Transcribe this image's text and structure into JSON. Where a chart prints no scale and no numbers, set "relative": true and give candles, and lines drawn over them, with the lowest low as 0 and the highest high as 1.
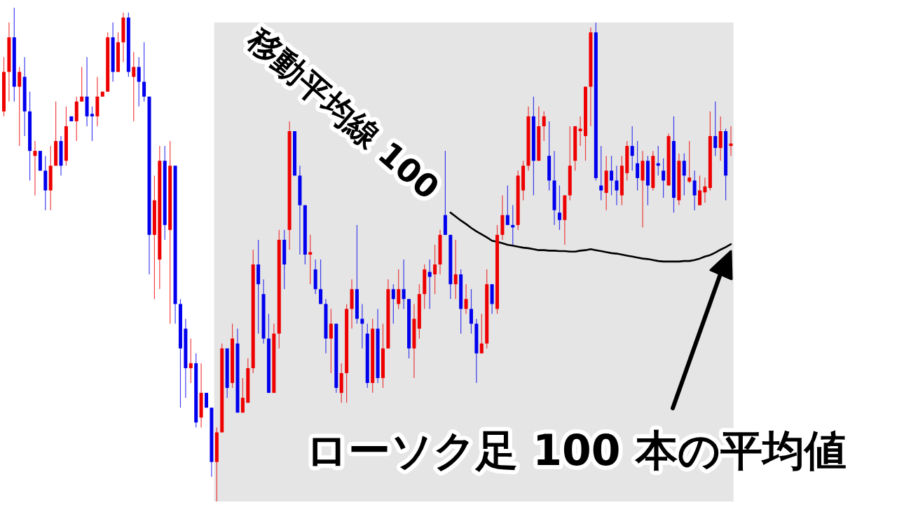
{
  "chart_data": {
    "type": "candlestick",
    "relative": true,
    "categories": [
      null,
      null,
      null,
      null,
      null,
      null,
      null,
      null,
      null,
      null,
      null,
      null,
      null,
      null,
      null,
      null,
      null,
      null,
      null,
      null,
      null,
      null,
      null,
      null,
      null,
      null,
      null,
      null,
      null,
      null,
      null,
      null,
      null,
      null,
      null,
      null,
      null,
      null,
      null,
      null,
      null,
      null,
      null,
      null,
      null,
      null,
      null,
      null,
      null,
      null,
      null,
      null,
      null,
      null,
      null,
      null,
      null,
      null,
      null,
      null,
      null,
      null,
      null,
      null,
      null,
      null,
      null,
      null,
      null,
      null,
      null,
      null,
      null,
      null,
      null,
      null,
      null,
      null,
      null,
      null,
      null,
      null,
      null,
      null,
      null,
      null,
      null,
      null,
      null,
      null,
      null,
      null,
      null,
      null,
      null,
      null,
      null,
      null,
      null,
      null,
      null,
      null,
      null,
      null,
      null,
      null,
      null,
      null,
      null,
      null,
      null,
      null,
      null,
      null,
      null,
      null,
      null,
      null,
      null,
      null,
      null,
      null,
      null,
      null,
      null,
      null,
      null,
      null,
      null,
      null,
      null,
      null,
      null,
      null,
      null,
      null,
      null,
      null,
      null,
      null,
      null
    ],
    "ohlc": [
      [
        0.79,
        0.9,
        0.78,
        0.87
      ],
      [
        0.87,
        0.97,
        0.81,
        0.94
      ],
      [
        0.94,
        1.0,
        0.81,
        0.84
      ],
      [
        0.84,
        0.88,
        0.72,
        0.87
      ],
      [
        0.86,
        0.9,
        0.74,
        0.79
      ],
      [
        0.79,
        0.83,
        0.65,
        0.71
      ],
      [
        0.7,
        0.73,
        0.62,
        0.71
      ],
      [
        0.71,
        0.71,
        0.67,
        0.67
      ],
      [
        0.67,
        0.7,
        0.59,
        0.63
      ],
      [
        0.63,
        0.72,
        0.59,
        0.68
      ],
      [
        0.68,
        0.81,
        0.68,
        0.73
      ],
      [
        0.73,
        0.74,
        0.66,
        0.68
      ],
      [
        0.69,
        0.8,
        0.68,
        0.76
      ],
      [
        0.78,
        0.78,
        0.77,
        0.77
      ],
      [
        0.77,
        0.82,
        0.73,
        0.81
      ],
      [
        0.81,
        0.88,
        0.81,
        0.82
      ],
      [
        0.82,
        0.9,
        0.76,
        0.78
      ],
      [
        0.785,
        0.8,
        0.73,
        0.78
      ],
      [
        0.78,
        0.86,
        0.76,
        0.82
      ],
      [
        0.82,
        0.83,
        0.82,
        0.83
      ],
      [
        0.83,
        0.95,
        0.83,
        0.94
      ],
      [
        0.94,
        0.97,
        0.85,
        0.87
      ],
      [
        0.87,
        0.95,
        0.87,
        0.93
      ],
      [
        0.93,
        0.99,
        0.89,
        0.98
      ],
      [
        0.98,
        0.99,
        0.86,
        0.87
      ],
      [
        0.86,
        0.91,
        0.77,
        0.88
      ],
      [
        0.88,
        0.9,
        0.8,
        0.85
      ],
      [
        0.85,
        0.93,
        0.81,
        0.82
      ],
      [
        0.82,
        0.82,
        0.46,
        0.54
      ],
      [
        0.54,
        0.66,
        0.41,
        0.61
      ],
      [
        0.49,
        0.72,
        0.43,
        0.69
      ],
      [
        0.69,
        0.72,
        0.53,
        0.56
      ],
      [
        0.55,
        0.73,
        0.36,
        0.68
      ],
      [
        0.68,
        0.68,
        0.36,
        0.4
      ],
      [
        0.4,
        0.41,
        0.19,
        0.31
      ],
      [
        0.35,
        0.37,
        0.21,
        0.27
      ],
      [
        0.27,
        0.33,
        0.24,
        0.28
      ],
      [
        0.28,
        0.3,
        0.15,
        0.16
      ],
      [
        0.17,
        0.28,
        0.15,
        0.22
      ],
      [
        0.22,
        0.22,
        0.19,
        0.19
      ],
      [
        0.19,
        0.19,
        0.05,
        0.08
      ],
      [
        0.08,
        0.15,
        0.0,
        0.14
      ],
      [
        0.14,
        0.32,
        0.14,
        0.31
      ],
      [
        0.31,
        0.31,
        0.21,
        0.23
      ],
      [
        0.24,
        0.36,
        0.23,
        0.33
      ],
      [
        0.32,
        0.35,
        0.18,
        0.18
      ],
      [
        0.18,
        0.25,
        0.18,
        0.21
      ],
      [
        0.2,
        0.29,
        0.2,
        0.27
      ],
      [
        0.27,
        0.51,
        0.26,
        0.48
      ],
      [
        0.48,
        0.53,
        0.34,
        0.44
      ],
      [
        0.42,
        0.45,
        0.32,
        0.33
      ],
      [
        0.33,
        0.38,
        0.22,
        0.22
      ],
      [
        0.22,
        0.36,
        0.22,
        0.34
      ],
      [
        0.34,
        0.55,
        0.31,
        0.53
      ],
      [
        0.53,
        0.55,
        0.43,
        0.48
      ],
      [
        0.55,
        0.77,
        0.51,
        0.75
      ],
      [
        0.75,
        0.75,
        0.66,
        0.66
      ],
      [
        0.66,
        0.68,
        0.5,
        0.6
      ],
      [
        0.6,
        0.6,
        0.48,
        0.5
      ],
      [
        0.5,
        0.54,
        0.44,
        0.505
      ],
      [
        0.47,
        0.49,
        0.42,
        0.43
      ],
      [
        0.43,
        0.49,
        0.4,
        0.4
      ],
      [
        0.4,
        0.41,
        0.3,
        0.33
      ],
      [
        0.33,
        0.39,
        0.26,
        0.36
      ],
      [
        0.36,
        0.36,
        0.22,
        0.23
      ],
      [
        0.22,
        0.28,
        0.2,
        0.26
      ],
      [
        0.26,
        0.4,
        0.2,
        0.39
      ],
      [
        0.39,
        0.45,
        0.35,
        0.43
      ],
      [
        0.43,
        0.56,
        0.36,
        0.37
      ],
      [
        0.37,
        0.4,
        0.31,
        0.36
      ],
      [
        0.34,
        0.36,
        0.23,
        0.24
      ],
      [
        0.24,
        0.37,
        0.22,
        0.35
      ],
      [
        0.35,
        0.39,
        0.24,
        0.25
      ],
      [
        0.25,
        0.36,
        0.23,
        0.31
      ],
      [
        0.31,
        0.45,
        0.31,
        0.43
      ],
      [
        0.43,
        0.44,
        0.36,
        0.41
      ],
      [
        0.4,
        0.47,
        0.39,
        0.43
      ],
      [
        0.43,
        0.49,
        0.39,
        0.41
      ],
      [
        0.41,
        0.41,
        0.29,
        0.31
      ],
      [
        0.31,
        0.4,
        0.25,
        0.37
      ],
      [
        0.35,
        0.44,
        0.33,
        0.42
      ],
      [
        0.42,
        0.48,
        0.39,
        0.47
      ],
      [
        0.465,
        0.49,
        0.39,
        0.455
      ],
      [
        0.46,
        0.52,
        0.42,
        0.48
      ],
      [
        0.48,
        0.55,
        0.46,
        0.54
      ],
      [
        0.58,
        0.71,
        0.54,
        0.54
      ],
      [
        0.54,
        0.54,
        0.41,
        0.44
      ],
      [
        0.44,
        0.53,
        0.41,
        0.46
      ],
      [
        0.46,
        0.47,
        0.34,
        0.39
      ],
      [
        0.39,
        0.44,
        0.38,
        0.41
      ],
      [
        0.39,
        0.43,
        0.34,
        0.36
      ],
      [
        0.36,
        0.37,
        0.24,
        0.3
      ],
      [
        0.3,
        0.38,
        0.3,
        0.32
      ],
      [
        0.32,
        0.47,
        0.31,
        0.44
      ],
      [
        0.44,
        0.44,
        0.38,
        0.4
      ],
      [
        0.39,
        0.56,
        0.38,
        0.54
      ],
      [
        0.54,
        0.62,
        0.53,
        0.58
      ],
      [
        0.58,
        0.64,
        0.56,
        0.56
      ],
      [
        0.56,
        0.6,
        0.52,
        0.555
      ],
      [
        0.56,
        0.67,
        0.55,
        0.66
      ],
      [
        0.63,
        0.69,
        0.61,
        0.68
      ],
      [
        0.68,
        0.8,
        0.67,
        0.78
      ],
      [
        0.78,
        0.82,
        0.62,
        0.69
      ],
      [
        0.69,
        0.8,
        0.69,
        0.76
      ],
      [
        0.76,
        0.79,
        0.73,
        0.78
      ],
      [
        0.7,
        0.77,
        0.63,
        0.65
      ],
      [
        0.65,
        0.71,
        0.56,
        0.59
      ],
      [
        0.585,
        0.64,
        0.55,
        0.57
      ],
      [
        0.57,
        0.62,
        0.52,
        0.62
      ],
      [
        0.62,
        0.76,
        0.61,
        0.68
      ],
      [
        0.69,
        0.76,
        0.67,
        0.76
      ],
      [
        0.75,
        0.78,
        0.72,
        0.755
      ],
      [
        0.74,
        0.84,
        0.69,
        0.84
      ],
      [
        0.84,
        0.96,
        0.76,
        0.95
      ],
      [
        0.95,
        0.97,
        0.65,
        0.655
      ],
      [
        0.64,
        0.72,
        0.61,
        0.63
      ],
      [
        0.625,
        0.7,
        0.59,
        0.67
      ],
      [
        0.67,
        0.7,
        0.62,
        0.65
      ],
      [
        0.65,
        0.68,
        0.6,
        0.63
      ],
      [
        0.62,
        0.7,
        0.6,
        0.68
      ],
      [
        0.665,
        0.73,
        0.65,
        0.72
      ],
      [
        0.72,
        0.76,
        0.67,
        0.7
      ],
      [
        0.685,
        0.73,
        0.63,
        0.655
      ],
      [
        0.65,
        0.71,
        0.555,
        0.69
      ],
      [
        0.69,
        0.7,
        0.6,
        0.64
      ],
      [
        0.635,
        0.71,
        0.63,
        0.7
      ],
      [
        0.685,
        0.72,
        0.66,
        0.68
      ],
      [
        0.67,
        0.695,
        0.615,
        0.65
      ],
      [
        0.64,
        0.745,
        0.64,
        0.74
      ],
      [
        0.73,
        0.78,
        0.585,
        0.615
      ],
      [
        0.61,
        0.705,
        0.6,
        0.69
      ],
      [
        0.69,
        0.705,
        0.62,
        0.66
      ],
      [
        0.648,
        0.73,
        0.645,
        0.656
      ],
      [
        0.65,
        0.67,
        0.59,
        0.62
      ],
      [
        0.6,
        0.66,
        0.6,
        0.63
      ],
      [
        0.626,
        0.656,
        0.605,
        0.638
      ],
      [
        0.635,
        0.79,
        0.63,
        0.74
      ],
      [
        0.74,
        0.81,
        0.7,
        0.716
      ],
      [
        0.716,
        0.78,
        0.69,
        0.75
      ],
      [
        0.75,
        0.755,
        0.61,
        0.66
      ],
      [
        0.72,
        0.76,
        0.7,
        0.725
      ]
    ],
    "series": [
      {
        "type": "line",
        "color": "#000000",
        "values": [
          null,
          null,
          null,
          null,
          null,
          null,
          null,
          null,
          null,
          null,
          null,
          null,
          null,
          null,
          null,
          null,
          null,
          null,
          null,
          null,
          null,
          null,
          null,
          null,
          null,
          null,
          null,
          null,
          null,
          null,
          null,
          null,
          null,
          null,
          null,
          null,
          null,
          null,
          null,
          null,
          null,
          null,
          null,
          null,
          null,
          null,
          null,
          null,
          null,
          null,
          null,
          null,
          null,
          null,
          null,
          null,
          null,
          null,
          null,
          null,
          null,
          null,
          null,
          null,
          null,
          null,
          null,
          null,
          null,
          null,
          null,
          null,
          null,
          null,
          null,
          null,
          null,
          null,
          null,
          null,
          null,
          null,
          null,
          null,
          null,
          null,
          0.585,
          0.577,
          0.569,
          0.562,
          0.554,
          0.547,
          0.541,
          0.535,
          0.528,
          0.526,
          0.523,
          0.52,
          0.518,
          0.516,
          0.514,
          0.513,
          0.511,
          0.509,
          0.509,
          0.508,
          0.508,
          0.507,
          0.507,
          0.506,
          0.506,
          0.508,
          0.509,
          0.511,
          0.509,
          0.507,
          0.505,
          0.503,
          0.502,
          0.5,
          0.498,
          0.496,
          0.494,
          0.492,
          0.491,
          0.489,
          0.487,
          0.486,
          0.486,
          0.486,
          0.486,
          0.487,
          0.487,
          0.489,
          0.492,
          0.496,
          0.499,
          0.504,
          0.51,
          0.515,
          0.521
        ]
      }
    ],
    "annotations": [
      "移動平均線 100",
      "ローソク足 100 本の平均値"
    ]
  }
}
